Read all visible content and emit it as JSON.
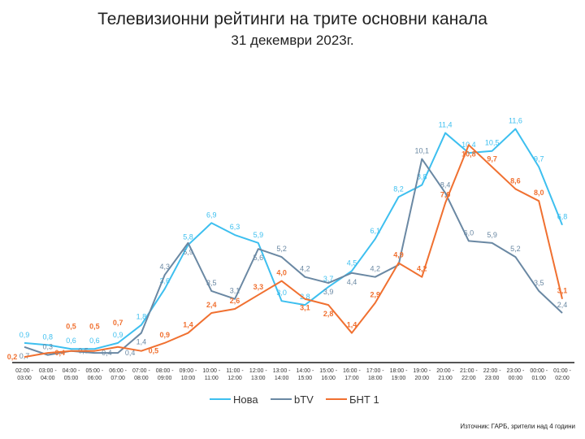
{
  "chart_data": {
    "type": "line",
    "title": "Телевизионни рейтинги на трите основни канала",
    "subtitle": "31 декември 2023г.",
    "source": "Източник: ГАРБ, зрители над 4 години",
    "xlabel": "",
    "ylabel": "",
    "ylim": [
      0,
      12
    ],
    "grid": false,
    "legend": "bottom",
    "categories": [
      "02:00 - 03:00",
      "03:00 - 04:00",
      "04:00 - 05:00",
      "05:00 - 06:00",
      "06:00 - 07:00",
      "07:00 - 08:00",
      "08:00 - 09:00",
      "09:00 - 10:00",
      "10:00 - 11:00",
      "11:00 - 12:00",
      "12:00 - 13:00",
      "13:00 - 14:00",
      "14:00 - 15:00",
      "15:00 - 16:00",
      "16:00 - 17:00",
      "17:00 - 18:00",
      "18:00 - 19:00",
      "19:00 - 20:00",
      "20:00 - 21:00",
      "21:00 - 22:00",
      "22:00 - 23:00",
      "23:00 - 00:00",
      "00:00 - 01:00",
      "01:00 - 02:00"
    ],
    "series": [
      {
        "name": "Нова",
        "color": "#3DBFEF",
        "bold": false,
        "values": [
          0.9,
          0.8,
          0.6,
          0.6,
          0.9,
          1.8,
          3.6,
          5.8,
          6.9,
          6.3,
          5.9,
          3.0,
          2.8,
          3.7,
          4.5,
          6.1,
          8.2,
          8.8,
          11.4,
          10.4,
          10.5,
          11.6,
          9.7,
          6.8
        ]
      },
      {
        "name": "bTV",
        "color": "#6A88A3",
        "bold": false,
        "values": [
          0.7,
          0.3,
          0.5,
          0.4,
          0.4,
          1.4,
          4.3,
          5.9,
          3.5,
          3.1,
          5.6,
          5.2,
          4.2,
          3.9,
          4.4,
          4.2,
          4.8,
          10.1,
          8.4,
          6.0,
          5.9,
          5.2,
          3.5,
          2.4
        ],
        "labels": [
          true,
          true,
          true,
          true,
          true,
          true,
          true,
          true,
          true,
          true,
          true,
          true,
          true,
          true,
          true,
          true,
          false,
          true,
          true,
          true,
          true,
          true,
          true,
          true
        ]
      },
      {
        "name": "БНТ 1",
        "color": "#F07030",
        "bold": true,
        "values": [
          0.2,
          0.4,
          0.5,
          0.5,
          0.7,
          0.5,
          0.9,
          1.4,
          2.4,
          2.6,
          3.3,
          4.0,
          3.1,
          2.8,
          1.4,
          2.9,
          4.9,
          4.2,
          7.9,
          10.8,
          9.7,
          8.6,
          8.0,
          3.1
        ]
      }
    ]
  }
}
